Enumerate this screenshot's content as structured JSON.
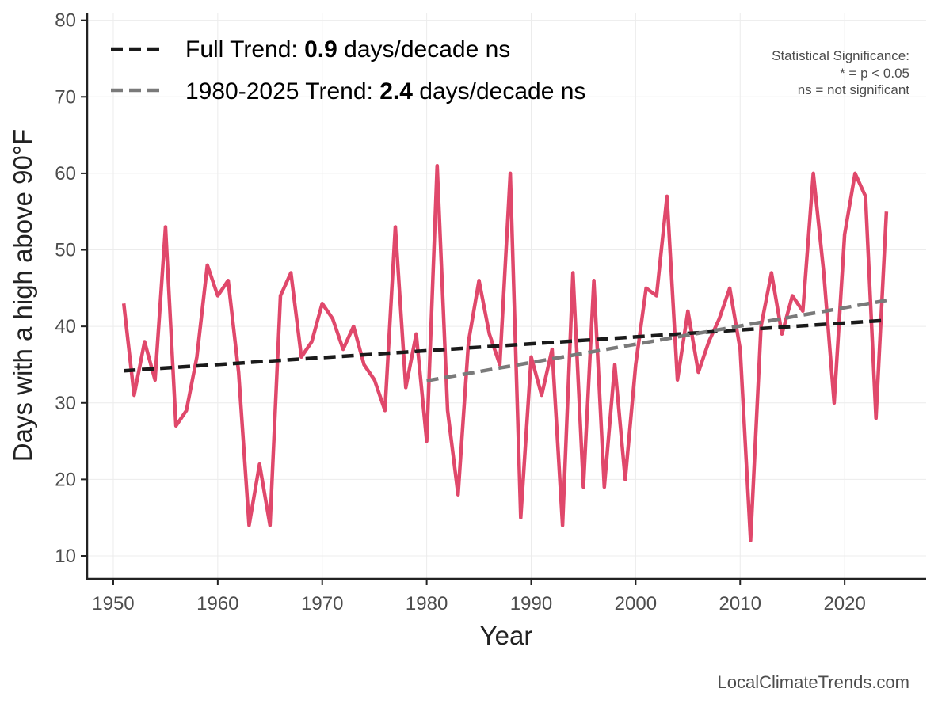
{
  "chart_data": {
    "type": "line",
    "xlabel": "Year",
    "ylabel": "Days with a high above 90°F",
    "xlim": [
      1947.5,
      2027.8
    ],
    "ylim": [
      7,
      81
    ],
    "x_ticks": [
      1950,
      1960,
      1970,
      1980,
      1990,
      2000,
      2010,
      2020
    ],
    "y_ticks": [
      10,
      20,
      30,
      40,
      50,
      60,
      70,
      80
    ],
    "grid": true,
    "legend_position": "top-left",
    "series": [
      {
        "color": "#e0486b",
        "x": [
          1951,
          1952,
          1953,
          1954,
          1955,
          1956,
          1957,
          1958,
          1959,
          1960,
          1961,
          1962,
          1963,
          1964,
          1965,
          1966,
          1967,
          1968,
          1969,
          1970,
          1971,
          1972,
          1973,
          1974,
          1975,
          1976,
          1977,
          1978,
          1979,
          1980,
          1981,
          1982,
          1983,
          1984,
          1985,
          1986,
          1987,
          1988,
          1989,
          1990,
          1991,
          1992,
          1993,
          1994,
          1995,
          1996,
          1997,
          1998,
          1999,
          2000,
          2001,
          2002,
          2003,
          2004,
          2005,
          2006,
          2007,
          2008,
          2009,
          2010,
          2011,
          2012,
          2013,
          2014,
          2015,
          2016,
          2017,
          2018,
          2019,
          2020,
          2021,
          2022,
          2023,
          2024
        ],
        "values": [
          43,
          31,
          38,
          33,
          53,
          27,
          29,
          36,
          48,
          44,
          46,
          34,
          14,
          22,
          14,
          44,
          47,
          36,
          38,
          43,
          41,
          37,
          40,
          35,
          33,
          29,
          53,
          32,
          39,
          25,
          61,
          29,
          18,
          38,
          46,
          39,
          35,
          60,
          15,
          36,
          31,
          37,
          14,
          47,
          19,
          46,
          19,
          35,
          20,
          35,
          45,
          44,
          57,
          33,
          42,
          34,
          38,
          41,
          45,
          37,
          12,
          40,
          47,
          39,
          44,
          42,
          60,
          47,
          30,
          52,
          60,
          57,
          28,
          55
        ]
      },
      {
        "name": "Full Trend:",
        "rate": "0.9",
        "unit": "days/decade ns",
        "color": "#1a1a1a",
        "style": "dashed",
        "x": [
          1951,
          2024
        ],
        "values": [
          34.2,
          40.8
        ]
      },
      {
        "name": "1980-2025 Trend:",
        "rate": "2.4",
        "unit": "days/decade ns",
        "color": "#7a7a7a",
        "style": "dashed",
        "x": [
          1980,
          2024
        ],
        "values": [
          32.9,
          43.4
        ]
      }
    ],
    "annotations": {
      "significance_lines": [
        "Statistical Significance:",
        "* = p < 0.05",
        "ns = not significant"
      ],
      "credit": "LocalClimateTrends.com"
    }
  }
}
